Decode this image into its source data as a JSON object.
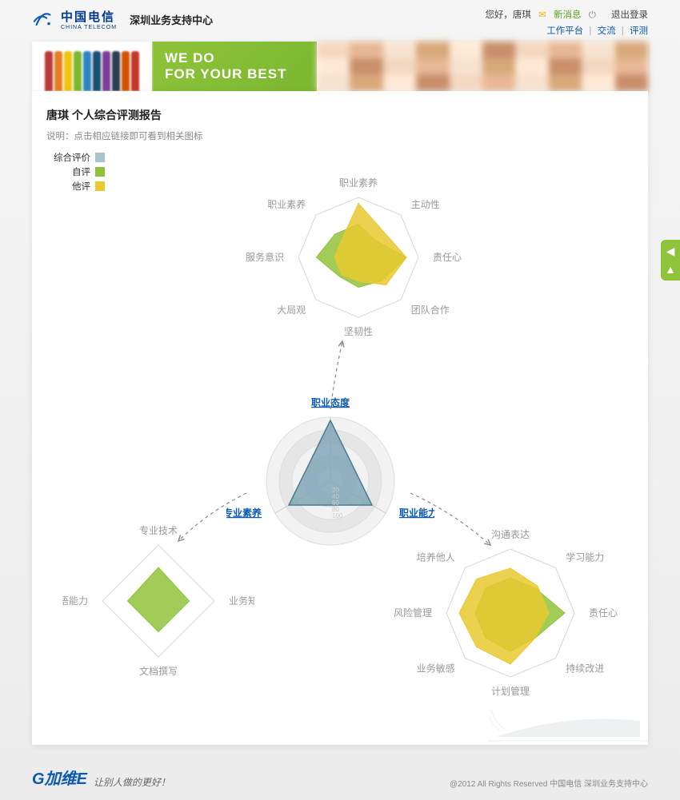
{
  "header": {
    "company_cn": "中国电信",
    "company_en": "CHINA TELECOM",
    "subcenter": "深圳业务支持中心",
    "greeting": "您好，唐琪",
    "new_msg": "新消息",
    "logout": "退出登录",
    "nav": {
      "workbench": "工作平台",
      "exchange": "交流",
      "evaluate": "评测"
    }
  },
  "banner": {
    "line1": "WE DO",
    "line2": "FOR YOUR BEST",
    "pencil_colors": [
      "#b83b3b",
      "#e67e22",
      "#f1c40f",
      "#7ab82f",
      "#2e86c1",
      "#1b4f72",
      "#7d3c98",
      "#2c3e50",
      "#d35400",
      "#c0392b"
    ]
  },
  "report": {
    "title": "唐琪 个人综合评测报告",
    "desc": "说明：点击相应链接即可看到相关图标",
    "legend": [
      {
        "label": "综合评价",
        "color": "#a9c3cf"
      },
      {
        "label": "自评",
        "color": "#8fc33a"
      },
      {
        "label": "他评",
        "color": "#e8c92e"
      }
    ]
  },
  "hub": {
    "labels": [
      "职业态度",
      "职业能力",
      "专业素养"
    ],
    "type": "radar",
    "rings": 5,
    "scales": [
      20,
      40,
      60,
      80,
      100
    ],
    "fill": "#7ca2b5",
    "stroke": "#4b7b92",
    "values": [
      95,
      75,
      75
    ],
    "bg_ring_color": "#e6e6e6",
    "bg_ring_alt": "#f2f2f2",
    "label_color": "#0b5ab0"
  },
  "top_radar": {
    "type": "radar",
    "labels": [
      "职业素养",
      "主动性",
      "责任心",
      "团队合作",
      "坚韧性",
      "大局观",
      "服务意识",
      "职业素养"
    ],
    "polygon_fill": "#ffffff",
    "polygon_stroke": "#d6d6d6",
    "series": [
      {
        "name": "self",
        "color": "#8fc33a",
        "values": [
          55,
          40,
          80,
          55,
          50,
          45,
          70,
          55
        ]
      },
      {
        "name": "peer",
        "color": "#e8c92e",
        "values": [
          90,
          60,
          80,
          65,
          40,
          40,
          40,
          40
        ]
      }
    ]
  },
  "left_radar": {
    "type": "radar",
    "labels": [
      "专业技术",
      "业务知识",
      "文档撰写",
      "英语能力"
    ],
    "polygon_fill": "#ffffff",
    "polygon_stroke": "#d6d6d6",
    "series": [
      {
        "name": "self",
        "color": "#8fc33a",
        "values": [
          60,
          55,
          55,
          55
        ]
      }
    ]
  },
  "right_radar": {
    "type": "radar",
    "labels": [
      "沟通表达",
      "学习能力",
      "责任心",
      "持续改进",
      "计划管理",
      "业务敏感",
      "风险管理",
      "培养他人"
    ],
    "polygon_fill": "#ffffff",
    "polygon_stroke": "#d6d6d6",
    "series": [
      {
        "name": "self",
        "color": "#8fc33a",
        "values": [
          55,
          55,
          85,
          55,
          60,
          55,
          55,
          55
        ]
      },
      {
        "name": "peer",
        "color": "#e8c92e",
        "values": [
          70,
          60,
          60,
          55,
          80,
          75,
          80,
          75
        ]
      }
    ]
  },
  "footer": {
    "brand": "加维",
    "tagline": "让别人做的更好！",
    "copyright": "@2012 All Rights Reserved 中国电信 深圳业务支持中心"
  }
}
